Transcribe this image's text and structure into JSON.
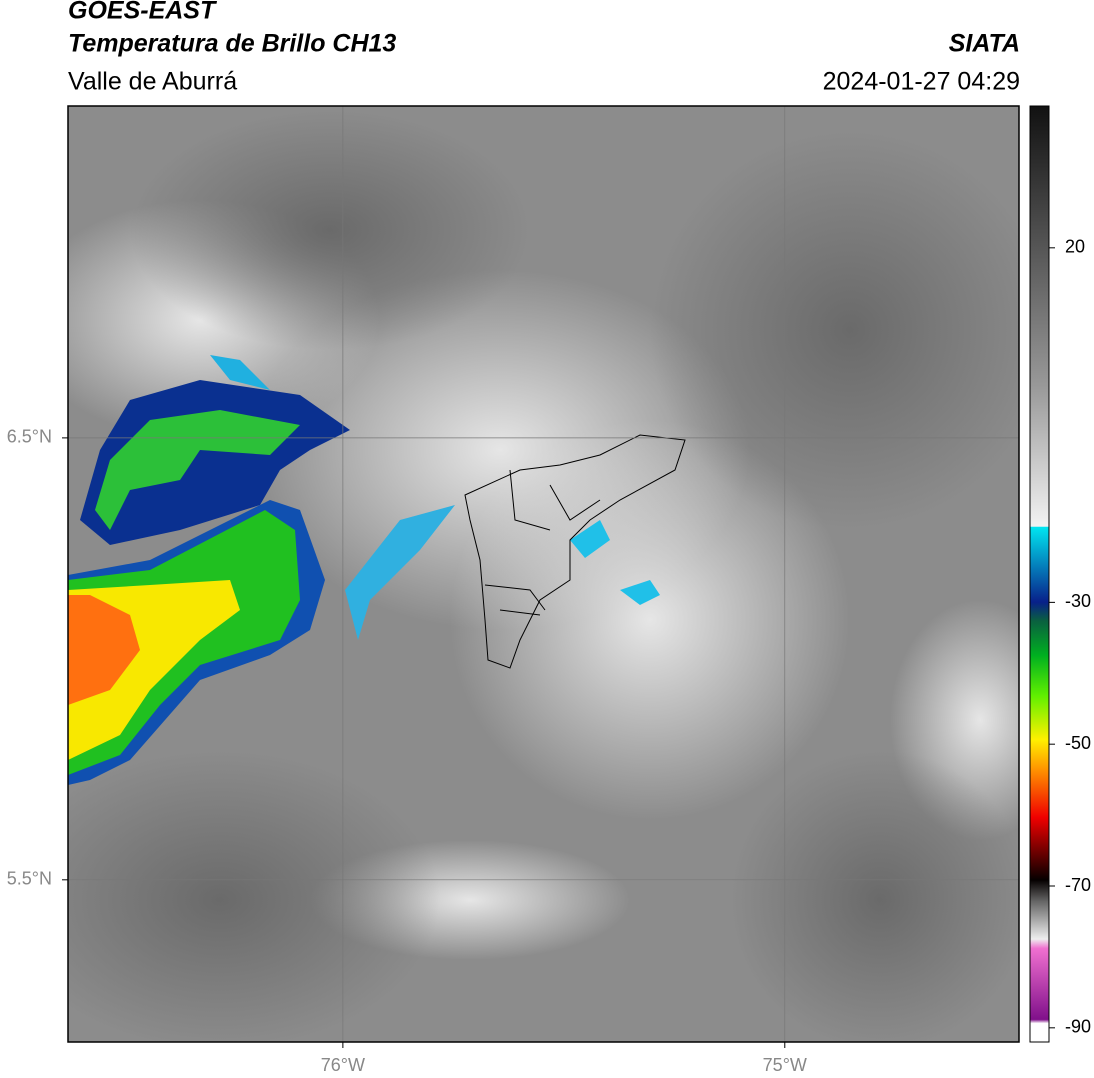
{
  "header": {
    "satellite": "GOES-EAST",
    "product": "Temperatura de Brillo CH13",
    "region": "Valle de Aburrá",
    "agency": "SIATA",
    "timestamp": "2024-01-27 04:29"
  },
  "map": {
    "lon_range": [
      -76.622,
      -74.47
    ],
    "lat_range": [
      5.133,
      7.251
    ],
    "lon_ticks": [
      {
        "value": -76,
        "label": "76°W"
      },
      {
        "value": -75,
        "label": "75°W"
      }
    ],
    "lat_ticks": [
      {
        "value": 6.5,
        "label": "6.5°N"
      },
      {
        "value": 5.5,
        "label": "5.5°N"
      }
    ]
  },
  "colorbar": {
    "range": [
      -92,
      40
    ],
    "ticks": [
      20,
      -30,
      -50,
      -70,
      -90
    ]
  }
}
